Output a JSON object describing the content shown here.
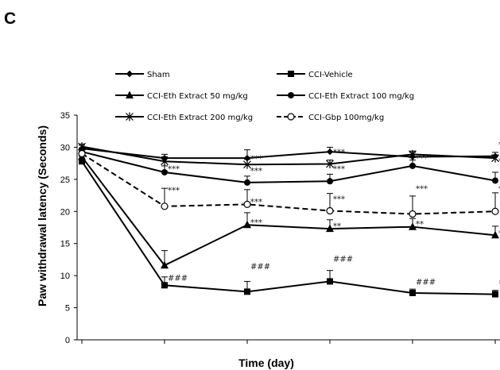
{
  "panel_label": "C",
  "chart_data": {
    "type": "line",
    "xlabel": "Time (day)",
    "ylabel": "Paw withdrawal latency (Seconds)",
    "ylim": [
      0,
      35
    ],
    "yticks": [
      0,
      5,
      10,
      15,
      20,
      25,
      30,
      35
    ],
    "x": [
      0,
      1,
      2,
      3,
      4,
      5
    ],
    "grid": false,
    "legend_position": "top",
    "series": [
      {
        "name": "Sham",
        "marker": "diamond",
        "dash": false,
        "values": [
          29.8,
          28.3,
          28.3,
          29.3,
          28.5,
          28.6
        ],
        "err": [
          0.5,
          0.6,
          1.3,
          0.7,
          0.7,
          0.6
        ]
      },
      {
        "name": "CCI-Vehicle",
        "marker": "square",
        "dash": false,
        "values": [
          27.8,
          8.5,
          7.5,
          9.1,
          7.3,
          7.1
        ],
        "err": [
          0.8,
          1.3,
          1.6,
          1.7,
          0.6,
          0.6
        ]
      },
      {
        "name": "CCI-Eth Extract 50 mg/kg",
        "marker": "triangle",
        "dash": false,
        "values": [
          28.5,
          11.6,
          17.9,
          17.3,
          17.6,
          16.3
        ],
        "err": [
          0.6,
          2.3,
          1.9,
          1.4,
          1.3,
          1.4
        ]
      },
      {
        "name": "CCI-Eth Extract 100 mg/kg",
        "marker": "circle",
        "dash": false,
        "values": [
          29.3,
          26.1,
          24.5,
          24.7,
          27.1,
          24.8
        ],
        "err": [
          0.6,
          1.0,
          1.0,
          1.1,
          0.9,
          1.3
        ]
      },
      {
        "name": "CCI-Eth Extract 200 mg/kg",
        "marker": "star",
        "dash": false,
        "values": [
          30.1,
          27.8,
          27.3,
          27.4,
          28.9,
          28.3
        ],
        "err": [
          0.4,
          0.7,
          0.8,
          0.6,
          0.5,
          0.5
        ]
      },
      {
        "name": "CCI-Gbp 100mg/kg",
        "marker": "open-circle",
        "dash": true,
        "values": [
          29.0,
          20.8,
          21.1,
          20.1,
          19.6,
          20.0
        ],
        "err": [
          0.6,
          2.8,
          2.3,
          2.7,
          2.8,
          2.9
        ]
      }
    ],
    "annotations": [
      {
        "text": "***",
        "x": 1,
        "y": 26.2
      },
      {
        "text": "***",
        "x": 1,
        "y": 22.9
      },
      {
        "text": "###",
        "x": 1,
        "y": 9.2
      },
      {
        "text": "***",
        "x": 2,
        "y": 27.8
      },
      {
        "text": "***",
        "x": 2,
        "y": 25.9
      },
      {
        "text": "***",
        "x": 2,
        "y": 21.1
      },
      {
        "text": "***",
        "x": 2,
        "y": 17.9
      },
      {
        "text": "###",
        "x": 2,
        "y": 11.0
      },
      {
        "text": "***",
        "x": 3,
        "y": 28.8
      },
      {
        "text": "***",
        "x": 3,
        "y": 26.2
      },
      {
        "text": "***",
        "x": 3,
        "y": 21.5
      },
      {
        "text": "**",
        "x": 3,
        "y": 17.3
      },
      {
        "text": "###",
        "x": 3,
        "y": 12.2
      },
      {
        "text": "***",
        "x": 4,
        "y": 27.9
      },
      {
        "text": "***",
        "x": 4,
        "y": 23.1
      },
      {
        "text": "**",
        "x": 4,
        "y": 17.6
      },
      {
        "text": "###",
        "x": 4,
        "y": 8.6
      },
      {
        "text": "***",
        "x": 5,
        "y": 30.0
      },
      {
        "text": "***",
        "x": 5,
        "y": 27.4
      },
      {
        "text": "***",
        "x": 5,
        "y": 23.1
      },
      {
        "text": "**",
        "x": 5,
        "y": 16.2
      },
      {
        "text": "##",
        "x": 5,
        "y": 8.6
      }
    ]
  }
}
